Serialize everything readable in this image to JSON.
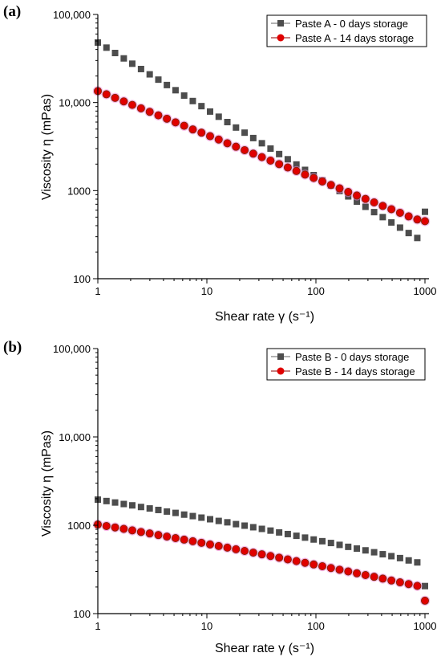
{
  "chart_data": [
    {
      "panel": "(a)",
      "type": "scatter",
      "xlabel": "Shear rate γ (s⁻¹)",
      "ylabel": "Viscosity η (mPas)",
      "xscale": "log",
      "yscale": "log",
      "xlim": [
        1,
        1000
      ],
      "ylim": [
        100,
        100000
      ],
      "xticks": [
        "1",
        "10",
        "100",
        "1000"
      ],
      "yticks": [
        "100",
        "1000",
        "10,000",
        "100,000"
      ],
      "legend_position": "top-right",
      "series": [
        {
          "name": "Paste A - 0 days storage",
          "marker": "square",
          "color": "#4d4d4d",
          "x": [
            1,
            1.2,
            1.44,
            1.73,
            2.07,
            2.49,
            2.99,
            3.59,
            4.3,
            5.16,
            6.19,
            7.43,
            8.92,
            10.7,
            12.84,
            15.41,
            18.49,
            22.19,
            26.62,
            31.95,
            38.34,
            46.0,
            55.2,
            66.24,
            79.49,
            95.39,
            114.5,
            137.4,
            164.8,
            197.8,
            237.4,
            284.8,
            341.8,
            410.2,
            492.2,
            590.6,
            708.8,
            850.5,
            1000
          ],
          "y": [
            48000,
            42000,
            36500,
            31700,
            27600,
            24000,
            20900,
            18200,
            15800,
            13800,
            12000,
            10400,
            9100,
            7900,
            6900,
            6000,
            5200,
            4550,
            3950,
            3450,
            3000,
            2600,
            2270,
            1980,
            1720,
            1500,
            1310,
            1140,
            990,
            860,
            750,
            655,
            570,
            500,
            435,
            380,
            330,
            290,
            575
          ]
        },
        {
          "name": "Paste A - 14 days storage",
          "marker": "circle",
          "color": "#e00000",
          "x": [
            1,
            1.2,
            1.44,
            1.73,
            2.07,
            2.49,
            2.99,
            3.59,
            4.3,
            5.16,
            6.19,
            7.43,
            8.92,
            10.7,
            12.84,
            15.41,
            18.49,
            22.19,
            26.62,
            31.95,
            38.34,
            46.0,
            55.2,
            66.24,
            79.49,
            95.39,
            114.5,
            137.4,
            164.8,
            197.8,
            237.4,
            284.8,
            341.8,
            410.2,
            492.2,
            590.6,
            708.8,
            850.5,
            1000
          ],
          "y": [
            13500,
            12400,
            11300,
            10300,
            9400,
            8600,
            7850,
            7150,
            6550,
            5950,
            5450,
            4950,
            4550,
            4150,
            3800,
            3450,
            3150,
            2880,
            2630,
            2400,
            2190,
            2000,
            1830,
            1670,
            1520,
            1390,
            1270,
            1160,
            1060,
            965,
            880,
            805,
            735,
            670,
            615,
            560,
            510,
            470,
            450
          ]
        }
      ]
    },
    {
      "panel": "(b)",
      "type": "scatter",
      "xlabel": "Shear rate γ (s⁻¹)",
      "ylabel": "Viscosity η (mPas)",
      "xscale": "log",
      "yscale": "log",
      "xlim": [
        1,
        1000
      ],
      "ylim": [
        100,
        100000
      ],
      "xticks": [
        "1",
        "10",
        "100",
        "1000"
      ],
      "yticks": [
        "100",
        "1000",
        "10,000",
        "100,000"
      ],
      "legend_position": "top-right",
      "series": [
        {
          "name": "Paste B - 0 days storage",
          "marker": "square",
          "color": "#4d4d4d",
          "x": [
            1,
            1.2,
            1.44,
            1.73,
            2.07,
            2.49,
            2.99,
            3.59,
            4.3,
            5.16,
            6.19,
            7.43,
            8.92,
            10.7,
            12.84,
            15.41,
            18.49,
            22.19,
            26.62,
            31.95,
            38.34,
            46.0,
            55.2,
            66.24,
            79.49,
            95.39,
            114.5,
            137.4,
            164.8,
            197.8,
            237.4,
            284.8,
            341.8,
            410.2,
            492.2,
            590.6,
            708.8,
            850.5,
            1000
          ],
          "y": [
            1950,
            1880,
            1810,
            1740,
            1680,
            1610,
            1550,
            1490,
            1430,
            1380,
            1320,
            1270,
            1220,
            1170,
            1120,
            1080,
            1030,
            990,
            950,
            910,
            870,
            830,
            795,
            760,
            725,
            690,
            660,
            630,
            600,
            570,
            545,
            520,
            495,
            470,
            447,
            425,
            400,
            380,
            205
          ]
        },
        {
          "name": "Paste B - 14 days storage",
          "marker": "circle",
          "color": "#e00000",
          "x": [
            1,
            1.2,
            1.44,
            1.73,
            2.07,
            2.49,
            2.99,
            3.59,
            4.3,
            5.16,
            6.19,
            7.43,
            8.92,
            10.7,
            12.84,
            15.41,
            18.49,
            22.19,
            26.62,
            31.95,
            38.34,
            46.0,
            55.2,
            66.24,
            79.49,
            95.39,
            114.5,
            137.4,
            164.8,
            197.8,
            237.4,
            284.8,
            341.8,
            410.2,
            492.2,
            590.6,
            708.8,
            850.5,
            1000
          ],
          "y": [
            1020,
            980,
            945,
            910,
            875,
            840,
            808,
            775,
            745,
            715,
            687,
            660,
            633,
            607,
            582,
            558,
            535,
            512,
            490,
            469,
            449,
            430,
            411,
            393,
            376,
            360,
            344,
            328,
            314,
            300,
            286,
            273,
            261,
            249,
            237,
            226,
            216,
            206,
            140
          ]
        }
      ]
    }
  ]
}
